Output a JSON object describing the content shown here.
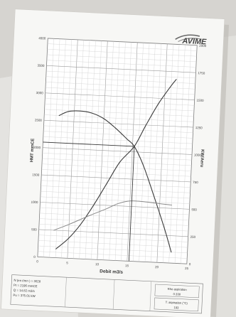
{
  "brand": {
    "name": "AVIME"
  },
  "chart_data": {
    "type": "line",
    "xlabel": "Debit m3/s",
    "ylabel_left": "HMT mmCE",
    "ylabel_right": "KW/Aeru",
    "x_ticks": [
      0,
      5,
      10,
      15,
      20,
      25
    ],
    "y_left_ticks": [
      0,
      500,
      1000,
      1500,
      2000,
      2500,
      3000,
      3500,
      4000
    ],
    "y_right_ticks": [
      0,
      250,
      500,
      750,
      1000,
      1250,
      1500,
      1750,
      2000
    ],
    "xlim": [
      0,
      25
    ],
    "ylim_left": [
      0,
      4000
    ],
    "ylim_right": [
      0,
      2000
    ],
    "grid": true,
    "series": [
      {
        "axis": "left",
        "points": [
          [
            2.5,
            2600
          ],
          [
            4,
            2680
          ],
          [
            6,
            2700
          ],
          [
            8,
            2670
          ],
          [
            10,
            2580
          ],
          [
            12,
            2420
          ],
          [
            14,
            2230
          ],
          [
            15.3,
            2100
          ],
          [
            17,
            1750
          ],
          [
            19,
            1200
          ],
          [
            21,
            620
          ],
          [
            22.3,
            200
          ]
        ]
      },
      {
        "axis": "right",
        "points": [
          [
            3,
            80
          ],
          [
            5,
            180
          ],
          [
            7,
            320
          ],
          [
            9,
            500
          ],
          [
            11,
            700
          ],
          [
            13,
            900
          ],
          [
            15.3,
            1050
          ],
          [
            17,
            1240
          ],
          [
            19,
            1450
          ],
          [
            21,
            1620
          ],
          [
            21.8,
            1680
          ]
        ]
      },
      {
        "axis": "left",
        "points": [
          [
            2.5,
            500
          ],
          [
            5,
            620
          ],
          [
            8,
            780
          ],
          [
            11,
            930
          ],
          [
            13,
            1040
          ],
          [
            15,
            1100
          ],
          [
            17,
            1100
          ],
          [
            19.5,
            1080
          ],
          [
            22,
            1060
          ]
        ]
      }
    ],
    "operating_point": {
      "x": 15.3,
      "y": 2100
    }
  },
  "footer": {
    "specs": [
      "N (en t/mn ) = 3028",
      "Pt = 2196 mmCE",
      "Q = 14.82 m3/s",
      "Pu = 375.01 kW"
    ],
    "box1": {
      "label": "Rho aspiration",
      "value": "0.338"
    },
    "box2": {
      "label": "T. aspiration (°C)",
      "value": "193"
    }
  }
}
